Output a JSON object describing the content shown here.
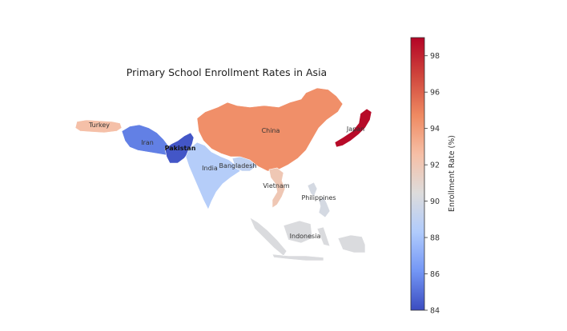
{
  "title": "Primary School Enrollment Rates in Asia",
  "colorbar": {
    "label": "Enrollment Rate (%)",
    "min": 84,
    "max": 99,
    "ticks": [
      "84",
      "86",
      "88",
      "90",
      "92",
      "94",
      "96",
      "98"
    ],
    "colormap": "coolwarm",
    "colors": [
      "#3b4cc0",
      "#7396f5",
      "#b0cbfc",
      "#dddcdc",
      "#f6bfa6",
      "#ef8a62",
      "#d0473d",
      "#b40426"
    ]
  },
  "countries": [
    {
      "id": "turkey",
      "label": "Turkey",
      "value": 92.5
    },
    {
      "id": "iran",
      "label": "Iran",
      "value": 85.5
    },
    {
      "id": "pakistan",
      "label": "Pakistan",
      "value": 84.3
    },
    {
      "id": "india",
      "label": "India",
      "value": 88.5
    },
    {
      "id": "bangladesh",
      "label": "Bangladesh",
      "value": 89.0
    },
    {
      "id": "china",
      "label": "China",
      "value": 94.5
    },
    {
      "id": "japan",
      "label": "Japan",
      "value": 98.8
    },
    {
      "id": "vietnam",
      "label": "Vietnam",
      "value": 92.0
    },
    {
      "id": "philippines",
      "label": "Philippines",
      "value": 90.0
    },
    {
      "id": "indonesia",
      "label": "Indonesia",
      "value": 90.3
    }
  ]
}
